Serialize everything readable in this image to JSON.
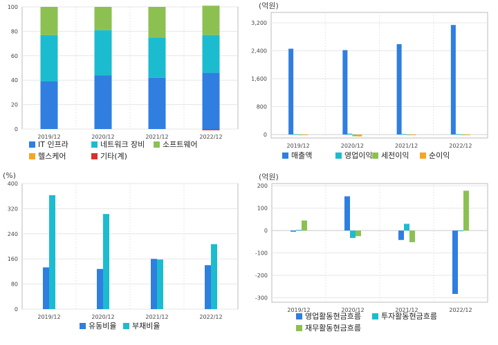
{
  "colors": {
    "blue": "#2f7ee0",
    "teal": "#1cbcd0",
    "green": "#8cc152",
    "orange": "#f5a623",
    "red": "#d9302c",
    "grid": "#e6e6e6",
    "border": "#bbbbbb",
    "tick_text": "#444444"
  },
  "chart_data": [
    {
      "id": "business-mix",
      "type": "bar",
      "stacked": true,
      "categories": [
        "2019/12",
        "2020/12",
        "2021/12",
        "2022/12"
      ],
      "ylim": [
        0,
        100
      ],
      "yticks": [
        "0",
        "20",
        "40",
        "60",
        "80",
        "100"
      ],
      "unit_label": "",
      "series": [
        {
          "name": "IT 인프라",
          "color": "#2f7ee0",
          "values": [
            39,
            44,
            42,
            46
          ]
        },
        {
          "name": "네트워크 장비",
          "color": "#1cbcd0",
          "values": [
            38,
            37,
            33,
            31
          ]
        },
        {
          "name": "소프트웨어",
          "color": "#8cc152",
          "values": [
            23,
            19,
            25,
            24
          ]
        },
        {
          "name": "헬스케어",
          "color": "#f5a623",
          "values": [
            0,
            0,
            0,
            0
          ]
        },
        {
          "name": "기타(계)",
          "color": "#d9302c",
          "values": [
            0,
            0,
            0,
            -1
          ]
        }
      ]
    },
    {
      "id": "income",
      "type": "bar",
      "categories": [
        "2019/12",
        "2020/12",
        "2021/12",
        "2022/12"
      ],
      "ylim": [
        -100,
        3500
      ],
      "yticks": [
        "0",
        "800",
        "1,600",
        "2,400",
        "3,200"
      ],
      "unit_label": "(억원)",
      "series": [
        {
          "name": "매출액",
          "color": "#2f7ee0",
          "values": [
            2460,
            2420,
            2590,
            3140
          ]
        },
        {
          "name": "영업이익",
          "color": "#1cbcd0",
          "values": [
            10,
            25,
            15,
            12
          ]
        },
        {
          "name": "세전이익",
          "color": "#8cc152",
          "values": [
            0,
            -50,
            0,
            0
          ]
        },
        {
          "name": "순이익",
          "color": "#f5a623",
          "values": [
            0,
            -55,
            0,
            0
          ]
        }
      ]
    },
    {
      "id": "ratios",
      "type": "bar",
      "categories": [
        "2019/12",
        "2020/12",
        "2021/12",
        "2022/12"
      ],
      "ylim": [
        0,
        400
      ],
      "yticks": [
        "0",
        "80",
        "160",
        "240",
        "320",
        "400"
      ],
      "unit_label": "(%)",
      "series": [
        {
          "name": "유동비율",
          "color": "#2f7ee0",
          "values": [
            133,
            128,
            160,
            140
          ]
        },
        {
          "name": "부채비율",
          "color": "#1cbcd0",
          "values": [
            363,
            303,
            158,
            207
          ]
        }
      ]
    },
    {
      "id": "cashflow",
      "type": "bar",
      "categories": [
        "2019/12",
        "2020/12",
        "2021/12",
        "2022/12"
      ],
      "ylim": [
        -320,
        210
      ],
      "yticks": [
        "-300",
        "-200",
        "-100",
        "0",
        "100",
        "200"
      ],
      "unit_label": "(억원)",
      "series": [
        {
          "name": "영업활동현금흐름",
          "color": "#2f7ee0",
          "values": [
            -5,
            153,
            -42,
            -283
          ]
        },
        {
          "name": "투자활동현금흐름",
          "color": "#1cbcd0",
          "values": [
            3,
            -33,
            30,
            0
          ]
        },
        {
          "name": "재무활동현금흐름",
          "color": "#8cc152",
          "values": [
            45,
            -25,
            -52,
            178
          ]
        }
      ]
    }
  ]
}
